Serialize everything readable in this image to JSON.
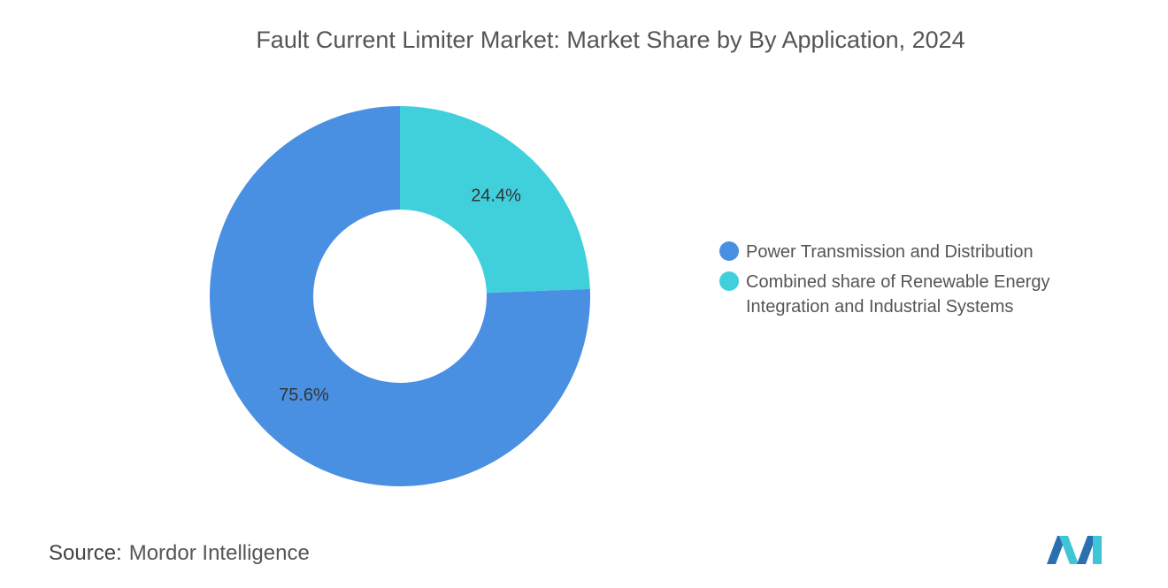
{
  "chart_data": {
    "type": "pie",
    "donut": true,
    "title": "Fault Current Limiter Market: Market Share by By Application, 2024",
    "categories": [
      "Combined share of Renewable Energy Integration and Industrial Systems",
      "Power Transmission and Distribution"
    ],
    "values": [
      24.4,
      75.6
    ],
    "value_labels": [
      "24.4%",
      "75.6%"
    ],
    "colors": [
      "#40d0dc",
      "#4a90e2"
    ],
    "legend_order": [
      1,
      0
    ]
  },
  "source": {
    "label": "Source:",
    "text": "Mordor Intelligence"
  }
}
